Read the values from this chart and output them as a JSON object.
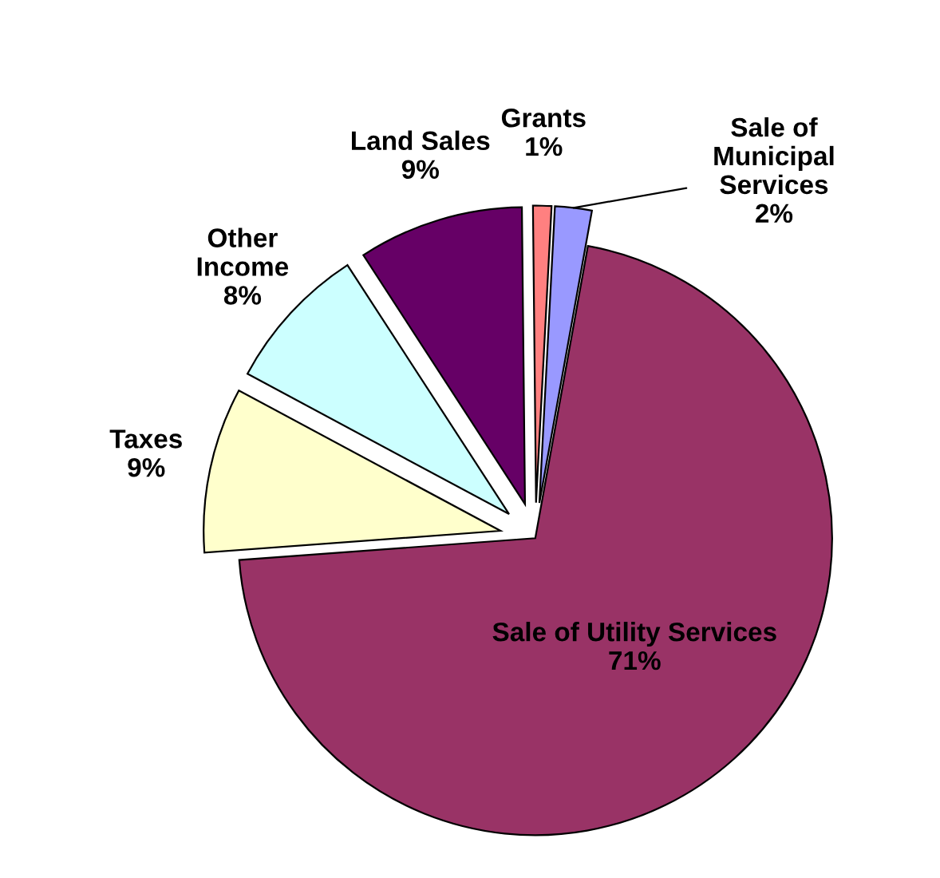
{
  "chart_data": {
    "type": "pie",
    "categories": [
      "Sale of\nMunicipal\nServices",
      "Sale of Utility Services",
      "Taxes",
      "Other\nIncome",
      "Land Sales",
      "Grants"
    ],
    "values": [
      2,
      71,
      9,
      8,
      9,
      1
    ],
    "value_labels": [
      "2%",
      "71%",
      "9%",
      "8%",
      "9%",
      "1%"
    ],
    "colors": [
      "#9999ff",
      "#993366",
      "#ffffcc",
      "#ccffff",
      "#660066",
      "#ff8080"
    ],
    "legend": false
  }
}
